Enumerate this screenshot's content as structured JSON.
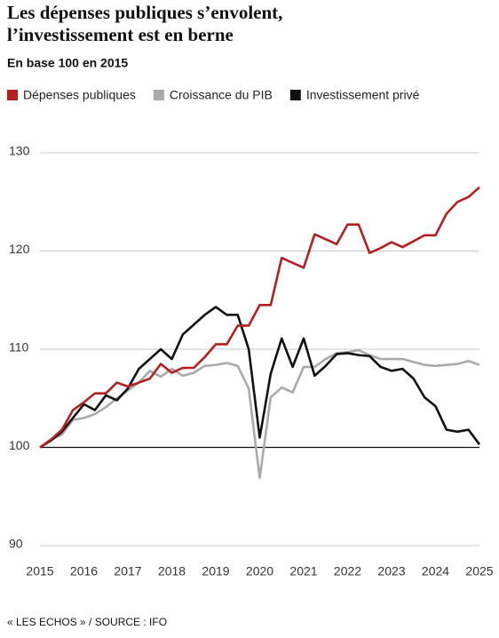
{
  "chart_data": {
    "type": "line",
    "title": "Les dépenses publiques s’envolent, l’investissement est en berne",
    "subtitle": "En base 100 en 2015",
    "source": "« LES ECHOS » / SOURCE : IFO",
    "x": [
      2015,
      2015.25,
      2015.5,
      2015.75,
      2016,
      2016.25,
      2016.5,
      2016.75,
      2017,
      2017.25,
      2017.5,
      2017.75,
      2018,
      2018.25,
      2018.5,
      2018.75,
      2019,
      2019.25,
      2019.5,
      2019.75,
      2020,
      2020.25,
      2020.5,
      2020.75,
      2021,
      2021.25,
      2021.5,
      2021.75,
      2022,
      2022.25,
      2022.5,
      2022.75,
      2023,
      2023.25,
      2023.5,
      2023.75,
      2024,
      2024.25,
      2024.5,
      2024.75,
      2025
    ],
    "series": [
      {
        "name": "Dépenses publiques",
        "color": "#b3201f",
        "values": [
          100,
          100.8,
          101.8,
          103.8,
          104.6,
          105.5,
          105.5,
          106.6,
          106.2,
          106.6,
          107.0,
          108.5,
          107.6,
          108.1,
          108.1,
          109.2,
          110.5,
          110.5,
          112.4,
          112.4,
          114.5,
          114.5,
          119.3,
          118.8,
          118.3,
          121.7,
          121.2,
          120.7,
          122.7,
          122.7,
          119.8,
          120.3,
          120.9,
          120.4,
          121.0,
          121.6,
          121.6,
          123.8,
          125.0,
          125.5,
          126.5
        ]
      },
      {
        "name": "Croissance du PIB",
        "color": "#aaaaaa",
        "values": [
          100,
          100.8,
          101.3,
          102.8,
          103.0,
          103.4,
          104.1,
          105.0,
          105.8,
          106.6,
          107.8,
          107.2,
          108.0,
          107.3,
          107.6,
          108.3,
          108.4,
          108.6,
          108.3,
          106.0,
          96.9,
          105.1,
          106.1,
          105.6,
          108.2,
          108.2,
          109.0,
          109.6,
          109.7,
          109.9,
          109.4,
          109.0,
          109.0,
          109.0,
          108.7,
          108.4,
          108.3,
          108.4,
          108.5,
          108.8,
          108.4
        ]
      },
      {
        "name": "Investissement privé",
        "color": "#111111",
        "values": [
          100,
          100.7,
          101.6,
          103.0,
          104.4,
          103.8,
          105.3,
          104.8,
          106.0,
          108.0,
          109.0,
          110.0,
          109.0,
          111.5,
          112.5,
          113.5,
          114.3,
          113.5,
          113.5,
          110.0,
          101.0,
          107.5,
          111.1,
          108.2,
          111.1,
          107.3,
          108.3,
          109.5,
          109.6,
          109.4,
          109.3,
          108.2,
          107.8,
          108.0,
          107.0,
          105.1,
          104.2,
          101.8,
          101.6,
          101.8,
          100.3
        ]
      }
    ],
    "xlim": [
      2015,
      2025
    ],
    "xticks": [
      2015,
      2016,
      2017,
      2018,
      2019,
      2020,
      2021,
      2022,
      2023,
      2024,
      2025
    ],
    "ylim": [
      90,
      130
    ],
    "yticks": [
      90,
      100,
      110,
      120,
      130
    ],
    "baseline": 100,
    "grid": true
  }
}
